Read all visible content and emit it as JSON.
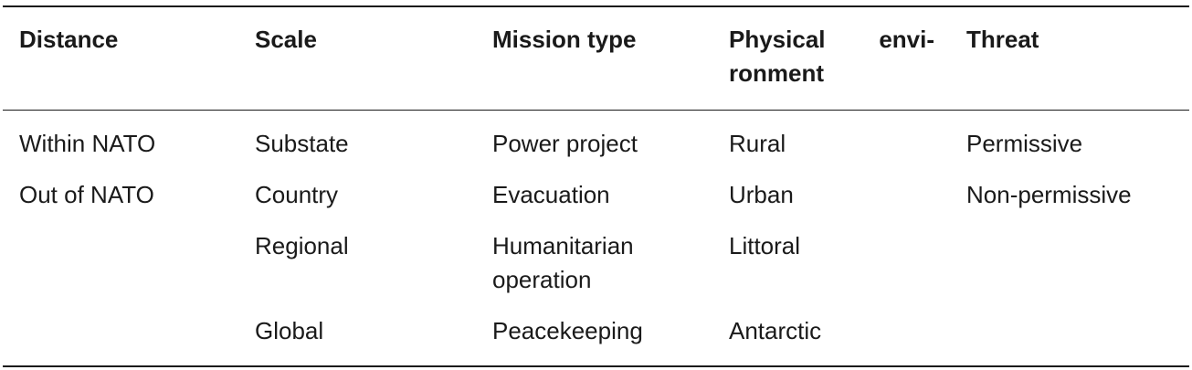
{
  "table": {
    "headers": {
      "distance": "Distance",
      "scale": "Scale",
      "mission_type": "Mission type",
      "physical_env_part1": "Physical",
      "physical_env_part2": "envi-",
      "physical_env_part3": "ronment",
      "threat": "Threat"
    },
    "distance": [
      "Within NATO",
      "Out of NATO"
    ],
    "scale": [
      "Substate",
      "Country",
      "Regional",
      "Global"
    ],
    "mission_type": [
      "Power project",
      "Evacuation",
      "Humanitarian",
      "operation",
      "Peacekeeping"
    ],
    "physical_environment": [
      "Rural",
      "Urban",
      "Littoral",
      "Antarctic"
    ],
    "threat": [
      "Permissive",
      "Non-permissive"
    ]
  }
}
